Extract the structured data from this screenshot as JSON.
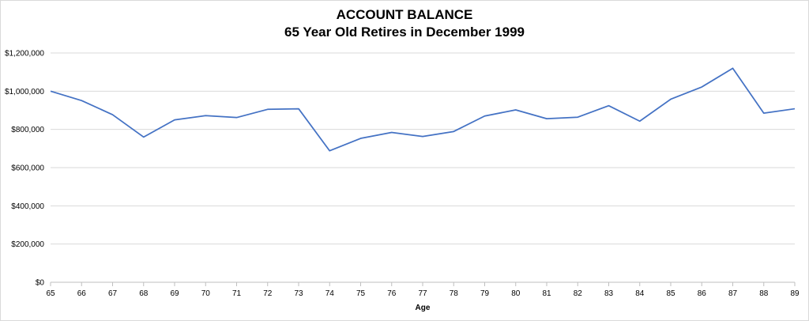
{
  "chart_data": {
    "type": "line",
    "title": "ACCOUNT BALANCE",
    "subtitle": "65 Year Old Retires in December 1999",
    "xlabel": "Age",
    "ylabel": "",
    "x": [
      65,
      66,
      67,
      68,
      69,
      70,
      71,
      72,
      73,
      74,
      75,
      76,
      77,
      78,
      79,
      80,
      81,
      82,
      83,
      84,
      85,
      86,
      87,
      88,
      89
    ],
    "x_tick_labels": [
      "65",
      "66",
      "67",
      "68",
      "69",
      "70",
      "71",
      "72",
      "73",
      "74",
      "75",
      "76",
      "77",
      "78",
      "79",
      "80",
      "81",
      "82",
      "83",
      "84",
      "85",
      "86",
      "87",
      "88",
      "89"
    ],
    "series": [
      {
        "values": [
          1000000,
          951000,
          877000,
          760000,
          850000,
          872000,
          862000,
          905000,
          908000,
          688000,
          753000,
          784000,
          763000,
          789000,
          870000,
          902000,
          856000,
          864000,
          924000,
          843000,
          958000,
          1022000,
          1120000,
          885000,
          908000
        ]
      }
    ],
    "ylim": [
      0,
      1200000
    ],
    "y_ticks": [
      0,
      200000,
      400000,
      600000,
      800000,
      1000000,
      1200000
    ],
    "y_tick_labels": [
      "$0",
      "$200,000",
      "$400,000",
      "$600,000",
      "$800,000",
      "$1,000,000",
      "$1,200,000"
    ],
    "grid": true,
    "line_color": "#4472c4",
    "grid_color": "#d9d9d9"
  }
}
